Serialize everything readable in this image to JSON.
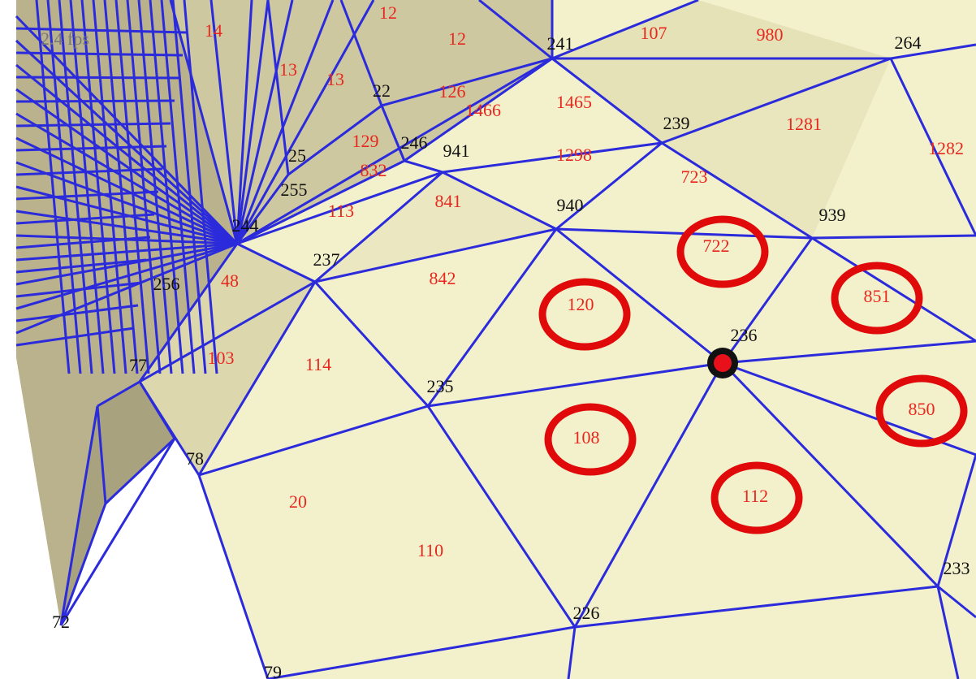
{
  "fps_label": "2.4 fps",
  "vertex_labels": [
    "241",
    "264",
    "239",
    "941",
    "940",
    "939",
    "237",
    "236",
    "235",
    "77",
    "78",
    "226",
    "233",
    "244",
    "246",
    "255",
    "256",
    "72",
    "79",
    "22",
    "25"
  ],
  "face_labels": [
    "107",
    "980",
    "1465",
    "1281",
    "1282",
    "1298",
    "723",
    "722",
    "851",
    "120",
    "842",
    "841",
    "129",
    "832",
    "126",
    "1466",
    "113",
    "48",
    "103",
    "114",
    "108",
    "112",
    "850",
    "20",
    "110",
    "12",
    "12",
    "13",
    "13",
    "14"
  ]
}
